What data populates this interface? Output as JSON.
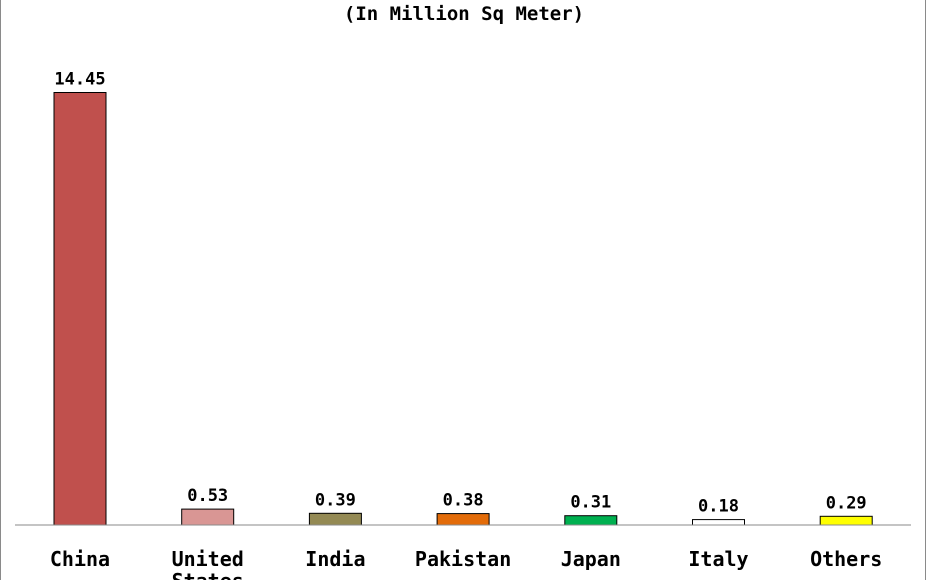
{
  "chart_data": {
    "type": "bar",
    "title": "(In Million Sq Meter)",
    "categories": [
      "China",
      "United States",
      "India",
      "Pakistan",
      "Japan",
      "Italy",
      "Others"
    ],
    "values": [
      14.45,
      0.53,
      0.39,
      0.38,
      0.31,
      0.18,
      0.29
    ],
    "data_labels": [
      "14.45",
      "0.53",
      "0.39",
      "0.38",
      "0.31",
      "0.18",
      "0.29"
    ],
    "colors": [
      "#c0504d",
      "#d99694",
      "#948a54",
      "#e36c09",
      "#00b050",
      "#ffffff",
      "#ffff00"
    ],
    "xlabel": "",
    "ylabel": "",
    "ylim": [
      0,
      14.5
    ],
    "grid": false,
    "legend": "none"
  }
}
